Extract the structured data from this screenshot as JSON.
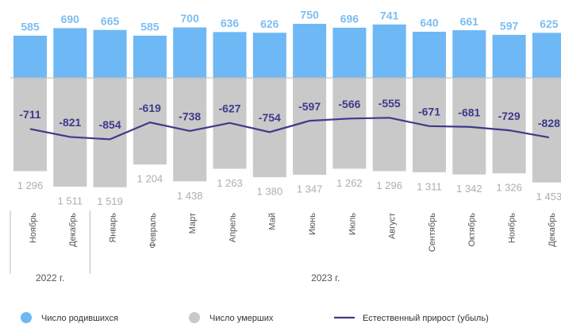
{
  "chart_data": {
    "type": "bar-line",
    "categories": [
      "Ноябрь",
      "Декабрь",
      "Январь",
      "Февраль",
      "Март",
      "Апрель",
      "Май",
      "Июнь",
      "Июль",
      "Август",
      "Сентябрь",
      "Октябрь",
      "Ноябрь",
      "Декабрь"
    ],
    "groups": [
      {
        "label": "2022 г.",
        "size": 2
      },
      {
        "label": "2023 г.",
        "size": 12
      }
    ],
    "series": [
      {
        "name": "Число родившихся",
        "color": "#6fb8f6",
        "label_color": "#7dbdf2",
        "values": [
          585,
          690,
          665,
          585,
          700,
          636,
          626,
          750,
          696,
          741,
          640,
          661,
          597,
          625
        ]
      },
      {
        "name": "Число умерших",
        "color": "#c9c9c9",
        "label_color": "#aeaeae",
        "values": [
          -1296,
          -1511,
          -1519,
          -1204,
          -1438,
          -1263,
          -1380,
          -1347,
          -1262,
          -1296,
          -1311,
          -1342,
          -1326,
          -1453
        ],
        "value_labels": [
          "1 296",
          "1 511",
          "1 519",
          "1 204",
          "1 438",
          "1 263",
          "1 380",
          "1 347",
          "1 262",
          "1 296",
          "1 311",
          "1 342",
          "1 326",
          "1 453"
        ]
      },
      {
        "name": "Естественный прирост (убыль)",
        "color": "#3d3a8c",
        "label_color": "#3d3a8c",
        "values": [
          -711,
          -821,
          -854,
          -619,
          -738,
          -627,
          -754,
          -597,
          -566,
          -555,
          -671,
          -681,
          -729,
          -828
        ]
      }
    ]
  }
}
